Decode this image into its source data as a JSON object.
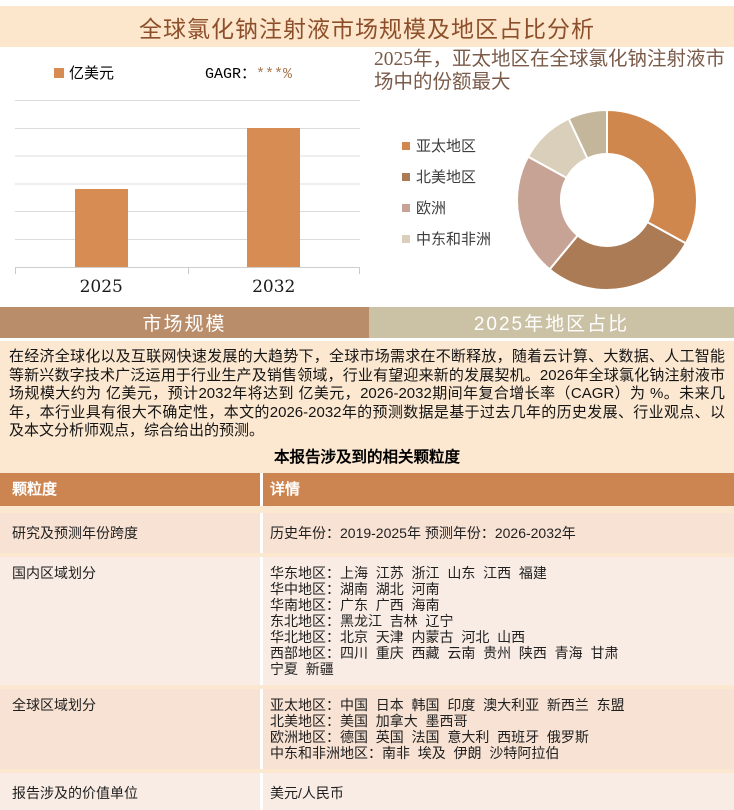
{
  "title": "全球氯化钠注射液市场规模及地区占比分析",
  "colors": {
    "title_bar_bg": "#fde7cc",
    "bar_color": "#d68c52",
    "tab_left_bg": "#b98c6a",
    "tab_right_bg": "#cbc2a6",
    "content_bg": "#fce8d1",
    "table_header_bg": "#cc8450",
    "table_row_a_bg": "#f7e2d3",
    "table_row_b_bg": "#f9ece5",
    "cagr_value_color": "#a87850",
    "title_text_color": "#8d4f2b"
  },
  "bar_section": {
    "legend_label": "亿美元",
    "cagr_prefix": "GAGR：",
    "cagr_value": "***%"
  },
  "donut_section": {
    "heading": "2025年，亚太地区在全球氯化钠注射液市场中的份额最大",
    "legend_labels": [
      "亚太地区",
      "北美地区",
      "欧洲",
      "中东和非洲"
    ]
  },
  "chart_data": [
    {
      "type": "bar",
      "title": "",
      "categories": [
        "2025",
        "2032"
      ],
      "values": [
        2.8,
        5
      ],
      "ylim": [
        0,
        6
      ],
      "gridlines": 7,
      "y_axis_labels_visible": false,
      "unit_legend": "亿美元",
      "cagr_text": "GAGR：***%",
      "bar_color": "#d68c52",
      "values_estimated_from_pixels": true
    },
    {
      "type": "pie",
      "donut": true,
      "title": "2025年，亚太地区在全球氯化钠注射液市场中的份额最大",
      "legend_position": "left",
      "slices": [
        {
          "label": "亚太地区",
          "value": 33,
          "color": "#d0874e"
        },
        {
          "label": "北美地区",
          "value": 28,
          "color": "#aa7b55"
        },
        {
          "label": "欧洲",
          "value": 22,
          "color": "#c7a395"
        },
        {
          "label": "中东和非洲",
          "value": 10,
          "color": "#d9cfba"
        },
        {
          "label": "",
          "value": 7,
          "color": "#c4b69a"
        }
      ],
      "values_estimated_from_pixels": true
    }
  ],
  "tabs": [
    {
      "label": "市场规模"
    },
    {
      "label": "2025年地区占比"
    }
  ],
  "paragraph": "在经济全球化以及互联网快速发展的大趋势下，全球市场需求在不断释放，随着云计算、大数据、人工智能等新兴数字技术广泛运用于行业生产及销售领域，行业有望迎来新的发展契机。2026年全球氯化钠注射液市场规模大约为 亿美元，预计2032年将达到 亿美元，2026-2032期间年复合增长率（CAGR）为 %。未来几年，本行业具有很大不确定性，本文的2026-2032年的预测数据是基于过去几年的历史发展、行业观点、以及本文分析师观点，综合给出的预测。",
  "table_title": "本报告涉及到的相关颗粒度",
  "table": {
    "headers": [
      "颗粒度",
      "详情"
    ],
    "rows": [
      {
        "label": "研究及预测年份跨度",
        "lines": [
          "历史年份：2019-2025年 预测年份：2026-2032年"
        ]
      },
      {
        "label": "国内区域划分",
        "lines": [
          "华东地区：上海  江苏  浙江  山东  江西  福建",
          "华中地区：湖南  湖北  河南",
          "华南地区：广东  广西  海南",
          "东北地区：黑龙江  吉林  辽宁",
          "华北地区：北京  天津  内蒙古  河北  山西",
          "西部地区：四川  重庆  西藏  云南  贵州  陕西  青海  甘肃",
          "宁夏  新疆"
        ]
      },
      {
        "label": "全球区域划分",
        "lines": [
          "亚太地区：中国  日本  韩国  印度  澳大利亚  新西兰  东盟",
          "北美地区：美国  加拿大  墨西哥",
          "欧洲地区：德国  英国  法国  意大利  西班牙  俄罗斯",
          "中东和非洲地区：南非  埃及  伊朗  沙特阿拉伯"
        ]
      },
      {
        "label": "报告涉及的价值单位",
        "lines": [
          "美元/人民币"
        ]
      }
    ]
  }
}
